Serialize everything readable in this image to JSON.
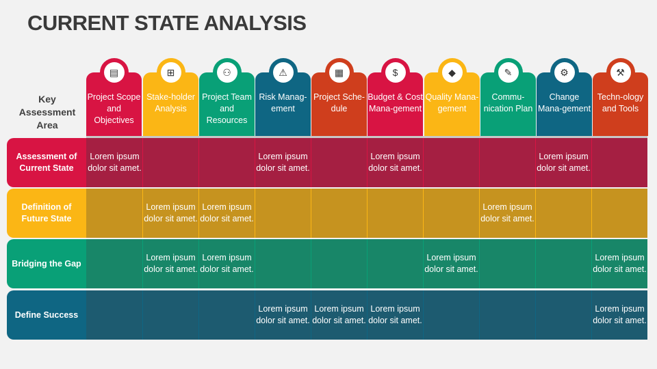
{
  "title": "CURRENT STATE ANALYSIS",
  "corner_label": "Key Assessment Area",
  "columns": [
    {
      "label": "Project Scope and Objectives",
      "color": "#d81443",
      "icon": "document-gear-icon",
      "glyph": "▤"
    },
    {
      "label": "Stake-holder Analysis",
      "color": "#fbb615",
      "icon": "org-chart-icon",
      "glyph": "⊞"
    },
    {
      "label": "Project Team and Resources",
      "color": "#09a077",
      "icon": "team-icon",
      "glyph": "⚇"
    },
    {
      "label": "Risk Manag-ement",
      "color": "#0f6683",
      "icon": "hand-warning-gear-icon",
      "glyph": "⚠"
    },
    {
      "label": "Project Sche-dule",
      "color": "#cf3e1d",
      "icon": "schedule-icon",
      "glyph": "▦"
    },
    {
      "label": "Budget & Cost Mana-gement",
      "color": "#d81443",
      "icon": "money-bag-icon",
      "glyph": "$"
    },
    {
      "label": "Quality Mana-gement",
      "color": "#fbb615",
      "icon": "diamond-gear-icon",
      "glyph": "◆"
    },
    {
      "label": "Commu-nication Plan",
      "color": "#09a077",
      "icon": "document-pen-icon",
      "glyph": "✎"
    },
    {
      "label": "Change Mana-gement",
      "color": "#0f6683",
      "icon": "hand-gear-icon",
      "glyph": "⚙"
    },
    {
      "label": "Techn-ology and Tools",
      "color": "#cf3e1d",
      "icon": "tools-icon",
      "glyph": "⚒"
    }
  ],
  "rows": [
    {
      "label": "Assessment of Current State",
      "color": "#d81443",
      "cell_color": "#a51f42",
      "line_color": "#d81443",
      "cells": [
        "Lorem ipsum dolor sit amet.",
        "",
        "",
        "Lorem ipsum dolor sit amet.",
        "",
        "Lorem ipsum dolor sit amet.",
        "",
        "",
        "Lorem ipsum dolor sit amet.",
        ""
      ]
    },
    {
      "label": "Definition of Future State",
      "color": "#fbb615",
      "cell_color": "#c6931f",
      "line_color": "#fbb615",
      "cells": [
        "",
        "Lorem ipsum dolor sit amet.",
        "Lorem ipsum dolor sit amet.",
        "",
        "",
        "",
        "",
        "Lorem ipsum dolor sit amet.",
        "",
        ""
      ]
    },
    {
      "label": "Bridging the Gap",
      "color": "#09a077",
      "cell_color": "#188668",
      "line_color": "#09a077",
      "cells": [
        "",
        "Lorem ipsum dolor sit amet.",
        "Lorem ipsum dolor sit amet.",
        "",
        "",
        "",
        "Lorem ipsum dolor sit amet.",
        "",
        "",
        "Lorem ipsum dolor sit amet."
      ]
    },
    {
      "label": "Define Success",
      "color": "#0f6683",
      "cell_color": "#1d5b70",
      "line_color": "#0f6683",
      "cells": [
        "",
        "",
        "",
        "Lorem ipsum dolor sit amet.",
        "Lorem ipsum dolor sit amet.",
        "Lorem ipsum dolor sit amet.",
        "",
        "",
        "",
        "Lorem ipsum dolor sit amet."
      ]
    }
  ]
}
